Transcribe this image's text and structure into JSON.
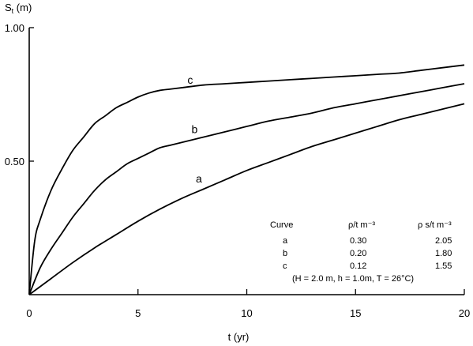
{
  "chart_data": {
    "type": "line",
    "title": "",
    "xlabel": "t (yr)",
    "ylabel": "S_t (m)",
    "ylabel_main": "S",
    "ylabel_sub": "t",
    "ylabel_unit": " (m)",
    "xlim": [
      0,
      20
    ],
    "ylim": [
      0,
      1.0
    ],
    "x_ticks": [
      0,
      5,
      10,
      15,
      20
    ],
    "x_tick_labels": [
      "0",
      "5",
      "10",
      "15",
      "20"
    ],
    "y_ticks": [
      0.5,
      1.0
    ],
    "y_tick_labels": [
      "0.50",
      "1.00"
    ],
    "grid": false,
    "series": [
      {
        "name": "c",
        "x": [
          0,
          0.25,
          0.5,
          1,
          1.5,
          2,
          2.5,
          3,
          3.5,
          4,
          4.5,
          5,
          5.5,
          6,
          6.5,
          7,
          8,
          9,
          10,
          11,
          12,
          13,
          14,
          15,
          16,
          17,
          18,
          19,
          20
        ],
        "y": [
          0,
          0.2,
          0.28,
          0.39,
          0.47,
          0.54,
          0.59,
          0.64,
          0.67,
          0.7,
          0.72,
          0.74,
          0.755,
          0.765,
          0.77,
          0.775,
          0.785,
          0.79,
          0.795,
          0.8,
          0.805,
          0.81,
          0.815,
          0.82,
          0.825,
          0.83,
          0.84,
          0.85,
          0.86
        ]
      },
      {
        "name": "b",
        "x": [
          0,
          0.5,
          1,
          1.5,
          2,
          2.5,
          3,
          3.5,
          4,
          4.5,
          5,
          5.5,
          6,
          6.5,
          7,
          8,
          9,
          10,
          11,
          12,
          13,
          14,
          15,
          16,
          17,
          18,
          19,
          20
        ],
        "y": [
          0,
          0.1,
          0.17,
          0.23,
          0.29,
          0.34,
          0.39,
          0.43,
          0.46,
          0.49,
          0.51,
          0.53,
          0.55,
          0.56,
          0.57,
          0.59,
          0.61,
          0.63,
          0.65,
          0.665,
          0.68,
          0.7,
          0.715,
          0.73,
          0.745,
          0.76,
          0.775,
          0.79
        ]
      },
      {
        "name": "a",
        "x": [
          0,
          1,
          2,
          3,
          4,
          5,
          6,
          7,
          8,
          9,
          10,
          11,
          12,
          13,
          14,
          15,
          16,
          17,
          18,
          19,
          20
        ],
        "y": [
          0,
          0.06,
          0.12,
          0.175,
          0.225,
          0.275,
          0.32,
          0.36,
          0.395,
          0.43,
          0.465,
          0.495,
          0.525,
          0.555,
          0.58,
          0.605,
          0.63,
          0.655,
          0.675,
          0.695,
          0.715
        ]
      }
    ],
    "curve_labels": [
      {
        "text": "c",
        "x": 7.4,
        "y": 0.79
      },
      {
        "text": "b",
        "x": 7.6,
        "y": 0.605
      },
      {
        "text": "a",
        "x": 7.8,
        "y": 0.42
      }
    ],
    "legend_table": {
      "headers": [
        "Curve",
        "ρ/t m⁻³",
        "ρ s/t m⁻³"
      ],
      "rows": [
        [
          "a",
          "0.30",
          "2.05"
        ],
        [
          "b",
          "0.20",
          "1.80"
        ],
        [
          "c",
          "0.12",
          "1.55"
        ]
      ],
      "note": "(H = 2.0 m, h = 1.0m, T = 26°C)"
    }
  }
}
